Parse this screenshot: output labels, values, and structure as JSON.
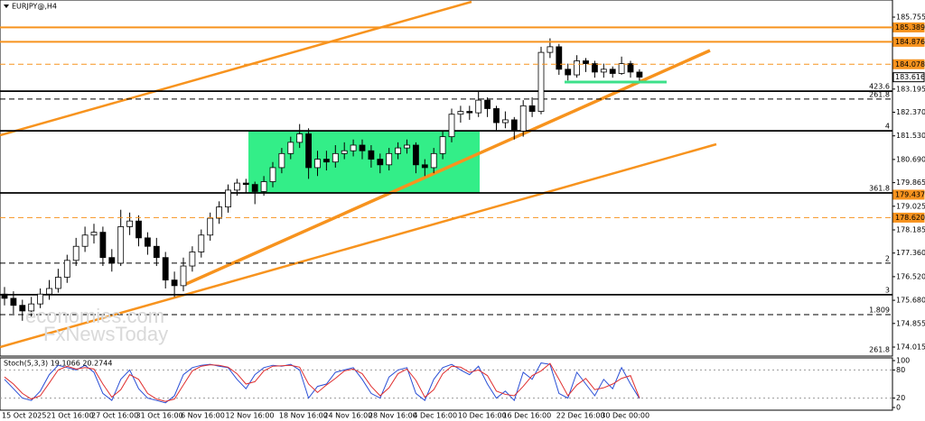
{
  "chart_data": [
    {
      "type": "candlestick",
      "symbol": "EURJPY@,H4",
      "categories": [
        "15 Oct 2025",
        null,
        null,
        null,
        null,
        "21 Oct 16:00",
        null,
        null,
        null,
        null,
        "27 Oct 16:00",
        null,
        null,
        null,
        null,
        "31 Oct 16:00",
        null,
        null,
        null,
        null,
        "6 Nov 16:00",
        null,
        null,
        null,
        null,
        "12 Nov 16:00",
        null,
        null,
        null,
        null,
        null,
        "18 Nov 16:00",
        null,
        null,
        null,
        null,
        "24 Nov 16:00",
        null,
        null,
        null,
        null,
        "28 Nov 16:00",
        null,
        null,
        null,
        null,
        "4 Dec 16:00",
        null,
        null,
        null,
        null,
        "10 Dec 16:00",
        null,
        null,
        null,
        null,
        "16 Dec 16:00",
        null,
        null,
        null,
        null,
        null,
        "22 Dec 16:00",
        null,
        null,
        null,
        null,
        "30 Dec 00:00",
        null,
        null,
        null,
        null
      ],
      "open": [
        175.9,
        175.75,
        175.5,
        175.3,
        175.55,
        175.9,
        176.1,
        176.5,
        177.1,
        177.6,
        178.0,
        178.1,
        177.2,
        177.0,
        178.3,
        178.5,
        177.9,
        177.6,
        177.2,
        176.4,
        176.2,
        176.9,
        177.4,
        178.0,
        178.6,
        179.0,
        179.6,
        179.85,
        179.8,
        179.55,
        179.9,
        180.4,
        180.9,
        181.3,
        181.6,
        180.4,
        180.7,
        180.6,
        180.9,
        181.0,
        181.2,
        181.0,
        180.7,
        180.5,
        180.9,
        181.1,
        181.2,
        180.5,
        180.4,
        180.9,
        181.5,
        182.3,
        182.4,
        182.35,
        182.8,
        182.5,
        182.0,
        182.1,
        181.7,
        182.6,
        182.4,
        184.5,
        184.7,
        183.9,
        183.7,
        184.2,
        184.1,
        183.8,
        183.9,
        183.75,
        184.1,
        183.8
      ],
      "high": [
        176.15,
        176.0,
        175.7,
        175.8,
        176.1,
        176.4,
        176.8,
        177.3,
        177.9,
        178.3,
        178.4,
        178.3,
        177.5,
        178.9,
        178.8,
        178.7,
        178.1,
        177.9,
        177.4,
        176.7,
        177.2,
        177.6,
        178.2,
        178.8,
        179.2,
        179.8,
        180.0,
        180.0,
        179.9,
        180.1,
        180.6,
        181.1,
        181.5,
        181.95,
        181.8,
        181.0,
        181.0,
        181.2,
        181.3,
        181.4,
        181.4,
        181.2,
        180.9,
        181.1,
        181.3,
        181.4,
        181.3,
        180.7,
        181.1,
        181.7,
        182.5,
        182.6,
        182.6,
        183.1,
        182.9,
        182.6,
        182.4,
        182.2,
        182.8,
        182.9,
        184.7,
        185.0,
        184.8,
        184.1,
        184.4,
        184.3,
        184.2,
        184.1,
        184.0,
        184.35,
        184.2,
        183.9
      ],
      "low": [
        175.5,
        175.2,
        174.95,
        175.1,
        175.4,
        175.7,
        175.95,
        176.3,
        176.9,
        177.4,
        177.7,
        176.9,
        176.7,
        176.9,
        178.0,
        177.6,
        177.3,
        176.9,
        176.1,
        175.8,
        176.0,
        176.7,
        177.2,
        177.8,
        178.4,
        178.8,
        179.4,
        179.5,
        179.1,
        179.4,
        179.7,
        180.2,
        180.7,
        181.1,
        180.0,
        180.1,
        180.3,
        180.4,
        180.7,
        180.8,
        180.7,
        180.4,
        180.2,
        180.3,
        180.7,
        180.9,
        180.2,
        180.1,
        180.2,
        180.7,
        181.3,
        182.0,
        182.1,
        182.2,
        182.2,
        181.7,
        181.8,
        181.4,
        181.5,
        182.2,
        182.3,
        184.3,
        183.7,
        183.5,
        183.6,
        183.8,
        183.6,
        183.6,
        183.6,
        183.7,
        183.6,
        183.5
      ],
      "close": [
        175.75,
        175.5,
        175.3,
        175.55,
        175.9,
        176.1,
        176.5,
        177.1,
        177.6,
        178.0,
        178.1,
        177.2,
        177.0,
        178.3,
        178.5,
        177.9,
        177.6,
        177.2,
        176.4,
        176.2,
        176.9,
        177.4,
        178.0,
        178.6,
        179.0,
        179.6,
        179.85,
        179.8,
        179.55,
        179.9,
        180.4,
        180.9,
        181.3,
        181.6,
        180.4,
        180.7,
        180.6,
        180.9,
        181.0,
        181.2,
        181.0,
        180.7,
        180.5,
        180.9,
        181.1,
        181.2,
        180.5,
        180.4,
        180.9,
        181.5,
        182.3,
        182.4,
        182.35,
        182.8,
        182.5,
        182.0,
        182.1,
        181.7,
        182.6,
        182.4,
        184.5,
        184.7,
        183.9,
        183.7,
        184.2,
        184.1,
        183.8,
        183.9,
        183.75,
        184.1,
        183.8,
        183.62
      ],
      "up_color": "#ffffff",
      "down_color": "#000000",
      "wick_color": "#000000",
      "ylim": [
        173.694,
        186.364
      ],
      "yticks": [
        185.755,
        183.195,
        {
          "value": 182.37,
          "label": "182.370"
        },
        {
          "value": 181.53,
          "label": "181.530"
        },
        {
          "value": 180.69,
          "label": "180.690"
        },
        179.865,
        179.025,
        178.185,
        {
          "value": 177.36,
          "label": "177.360"
        },
        {
          "value": 176.52,
          "label": "176.520"
        },
        {
          "value": 175.68,
          "label": "175.680"
        },
        174.855,
        174.015
      ],
      "levels": [
        {
          "value": 183.12,
          "label": "423.6",
          "style": "solid"
        },
        {
          "value": 182.84,
          "label": "261.8",
          "style": "dashed"
        },
        {
          "value": 181.71,
          "label": "4",
          "style": "solid"
        },
        {
          "value": 179.5,
          "label": "361.8",
          "style": "solid"
        },
        {
          "value": 177.0,
          "label": "2",
          "style": "dashed"
        },
        {
          "value": 175.88,
          "label": "3",
          "style": "solid"
        },
        {
          "value": 175.17,
          "label": "1.809",
          "style": "dashed"
        },
        {
          "value": 173.76,
          "label": "261.8",
          "style": "none"
        }
      ],
      "markers": {
        "values": [
          185.389,
          184.876,
          184.078,
          183.616,
          179.437,
          178.62
        ],
        "value_labels": [
          "185.389",
          "184.876",
          "184.078",
          "183.616",
          "179.437",
          "178.620"
        ],
        "colors": [
          "#f7931e",
          "#f7931e",
          "#f7931e",
          "#ffffff",
          "#f7931e",
          "#f7931e"
        ],
        "styles": [
          "solid",
          "solid",
          "dashed",
          "none",
          "none",
          "dashed"
        ]
      },
      "watermark": [
        "economies.com",
        "FxNewsToday"
      ]
    },
    {
      "type": "line",
      "title": "Stoch(5,3,3) 19.1066 20.2744",
      "ylim": [
        0,
        100
      ],
      "yticks": [
        0,
        20,
        80,
        100
      ],
      "series": [
        {
          "color": "#2a4fd6",
          "values": [
            60,
            40,
            20,
            15,
            35,
            70,
            90,
            85,
            80,
            90,
            75,
            30,
            15,
            60,
            80,
            40,
            20,
            15,
            10,
            25,
            70,
            85,
            90,
            92,
            88,
            85,
            60,
            40,
            70,
            85,
            90,
            88,
            92,
            80,
            20,
            45,
            50,
            75,
            80,
            85,
            60,
            30,
            20,
            65,
            80,
            85,
            30,
            15,
            60,
            85,
            92,
            80,
            70,
            88,
            50,
            20,
            35,
            15,
            75,
            60,
            95,
            92,
            30,
            20,
            75,
            50,
            25,
            60,
            40,
            85,
            50,
            19.1066
          ]
        },
        {
          "color": "#e03030",
          "values": [
            65,
            50,
            30,
            18,
            25,
            52,
            80,
            88,
            82,
            85,
            82,
            50,
            22,
            38,
            70,
            60,
            30,
            18,
            13,
            18,
            48,
            78,
            88,
            91,
            90,
            86,
            72,
            50,
            55,
            78,
            88,
            89,
            90,
            86,
            50,
            32,
            48,
            62,
            78,
            82,
            72,
            45,
            25,
            42,
            72,
            82,
            58,
            22,
            38,
            72,
            88,
            86,
            75,
            80,
            68,
            35,
            28,
            25,
            45,
            68,
            78,
            94,
            60,
            25,
            48,
            62,
            38,
            42,
            50,
            62,
            68,
            20.2744
          ]
        }
      ]
    }
  ]
}
